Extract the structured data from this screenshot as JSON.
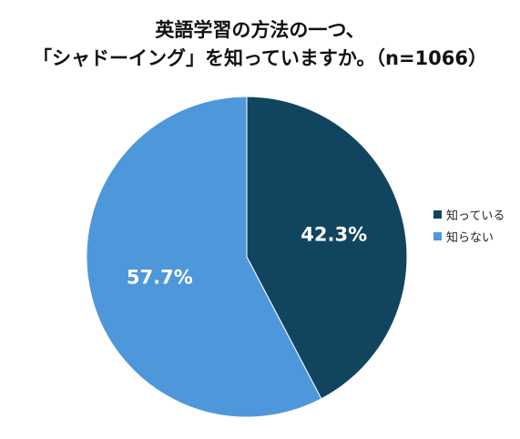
{
  "chart_data": {
    "type": "pie",
    "title_line1": "英語学習の方法の一つ、",
    "title_line2": "「シャドーイング」を知っていますか。（n=1066）",
    "slices": [
      {
        "name": "知っている",
        "value": 42.3,
        "label": "42.3%",
        "color": "#11455f"
      },
      {
        "name": "知らない",
        "value": 57.7,
        "label": "57.7%",
        "color": "#4f97db"
      }
    ],
    "legend_position": "right",
    "start": "top",
    "direction": "clockwise"
  }
}
